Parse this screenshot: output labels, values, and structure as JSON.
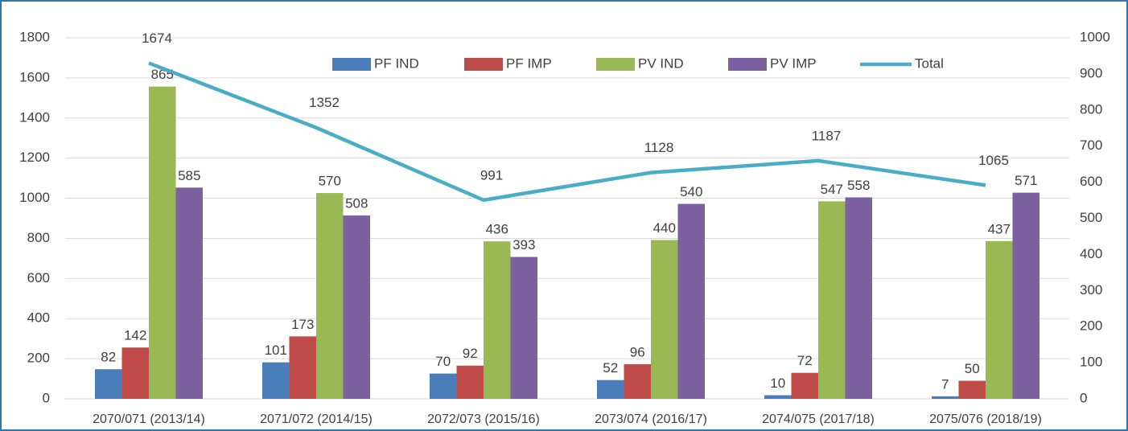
{
  "chart_data": {
    "type": "bar",
    "categories": [
      "2070/071 (2013/14)",
      "2071/072 (2014/15)",
      "2072/073 (2015/16)",
      "2073/074 (2016/17)",
      "2074/075 (2017/18)",
      "2075/076 (2018/19)"
    ],
    "series": [
      {
        "name": "PF IND",
        "color": "#4a7ebb",
        "axis": "y2",
        "values": [
          82,
          101,
          70,
          52,
          10,
          7
        ]
      },
      {
        "name": "PF IMP",
        "color": "#be4b48",
        "axis": "y2",
        "values": [
          142,
          173,
          92,
          96,
          72,
          50
        ]
      },
      {
        "name": "PV IND",
        "color": "#98b954",
        "axis": "y2",
        "values": [
          865,
          570,
          436,
          440,
          547,
          437
        ]
      },
      {
        "name": "PV IMP",
        "color": "#7d60a0",
        "axis": "y2",
        "values": [
          585,
          508,
          393,
          540,
          558,
          571
        ]
      },
      {
        "name": "Total",
        "color": "#4bacc6",
        "type": "line",
        "axis": "y",
        "values": [
          1674,
          1352,
          991,
          1128,
          1187,
          1065
        ]
      }
    ],
    "ylim": [
      0,
      1800
    ],
    "yticks": [
      0,
      200,
      400,
      600,
      800,
      1000,
      1200,
      1400,
      1600,
      1800
    ],
    "y2lim": [
      0,
      1000
    ],
    "y2ticks": [
      0,
      100,
      200,
      300,
      400,
      500,
      600,
      700,
      800,
      900,
      1000
    ],
    "grid": true,
    "legend": "top"
  }
}
